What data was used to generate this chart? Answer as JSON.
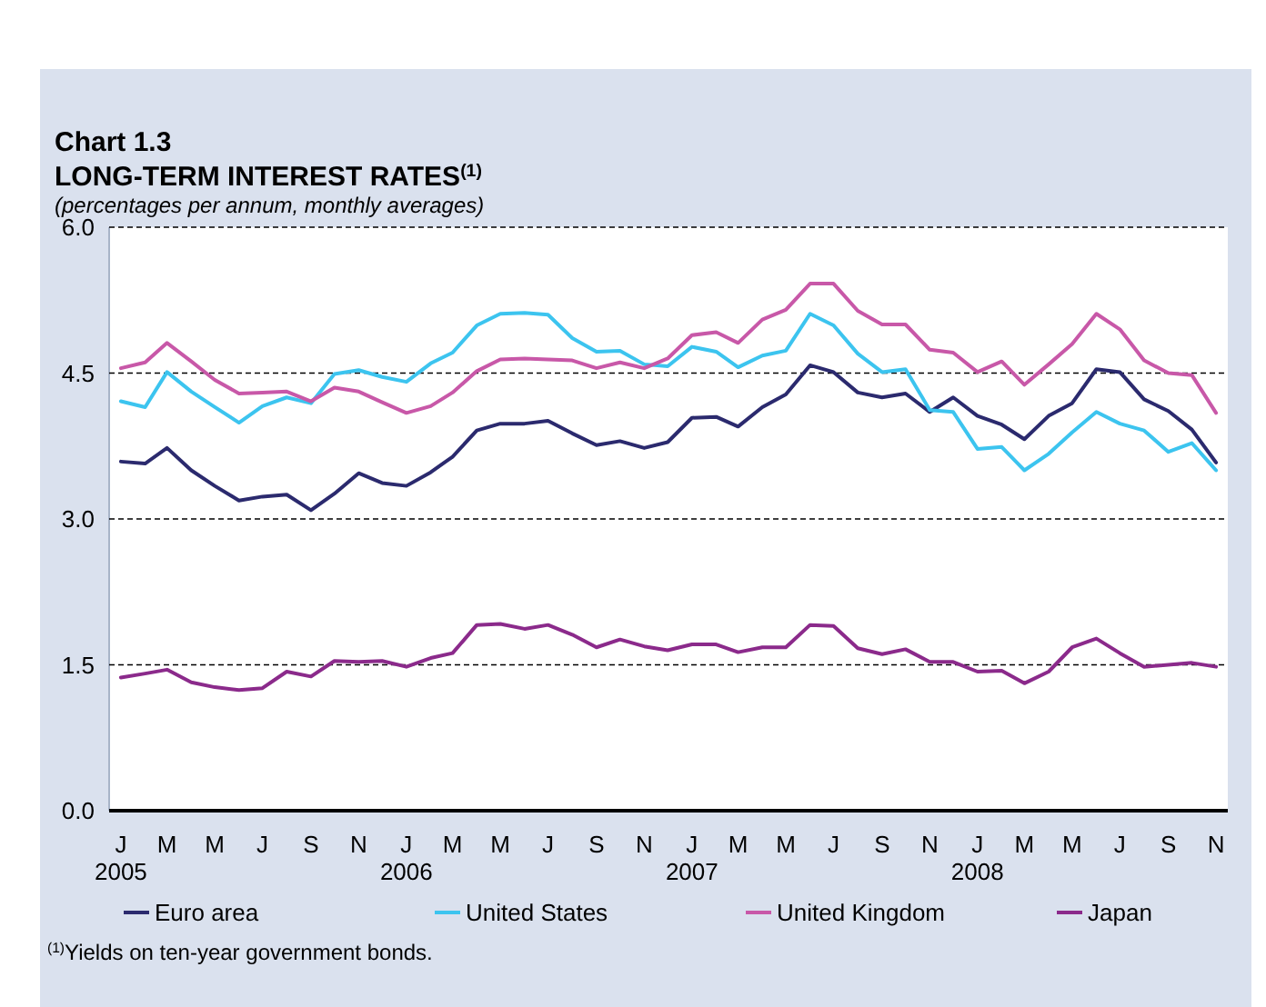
{
  "chart_data": {
    "type": "line",
    "title": "Chart 1.3",
    "subtitle": "LONG-TERM INTEREST RATES$^{(1)}$",
    "ylabel": "(percentages per annum, monthly averages)",
    "annotations": [
      "$^{(1)}$Yields on ten-year government bonds."
    ],
    "x": [
      "2005-01",
      "2005-02",
      "2005-03",
      "2005-04",
      "2005-05",
      "2005-06",
      "2005-07",
      "2005-08",
      "2005-09",
      "2005-10",
      "2005-11",
      "2005-12",
      "2006-01",
      "2006-02",
      "2006-03",
      "2006-04",
      "2006-05",
      "2006-06",
      "2006-07",
      "2006-08",
      "2006-09",
      "2006-10",
      "2006-11",
      "2006-12",
      "2007-01",
      "2007-02",
      "2007-03",
      "2007-04",
      "2007-05",
      "2007-06",
      "2007-07",
      "2007-08",
      "2007-09",
      "2007-10",
      "2007-11",
      "2007-12",
      "2008-01",
      "2008-02",
      "2008-03",
      "2008-04",
      "2008-05",
      "2008-06",
      "2008-07",
      "2008-08",
      "2008-09",
      "2008-10",
      "2008-11"
    ],
    "series": [
      {
        "name": "Euro area",
        "color": "#2b2a6e",
        "values": [
          3.59,
          3.57,
          3.73,
          3.5,
          3.34,
          3.19,
          3.23,
          3.25,
          3.09,
          3.26,
          3.47,
          3.37,
          3.34,
          3.48,
          3.64,
          3.91,
          3.98,
          3.98,
          4.01,
          3.88,
          3.76,
          3.8,
          3.73,
          3.79,
          4.04,
          4.05,
          3.95,
          4.15,
          4.28,
          4.58,
          4.51,
          4.3,
          4.25,
          4.29,
          4.1,
          4.25,
          4.06,
          3.97,
          3.82,
          4.06,
          4.19,
          4.54,
          4.51,
          4.23,
          4.11,
          3.92,
          3.58
        ]
      },
      {
        "name": "United States",
        "color": "#3cc4ef",
        "values": [
          4.21,
          4.15,
          4.51,
          4.31,
          4.15,
          3.99,
          4.16,
          4.25,
          4.19,
          4.49,
          4.53,
          4.46,
          4.41,
          4.6,
          4.71,
          4.99,
          5.11,
          5.12,
          5.1,
          4.86,
          4.72,
          4.73,
          4.59,
          4.57,
          4.77,
          4.72,
          4.56,
          4.68,
          4.73,
          5.11,
          4.99,
          4.7,
          4.51,
          4.54,
          4.12,
          4.1,
          3.72,
          3.74,
          3.5,
          3.67,
          3.89,
          4.1,
          3.98,
          3.91,
          3.69,
          3.78,
          3.5
        ]
      },
      {
        "name": "United Kingdom",
        "color": "#c858a8",
        "values": [
          4.55,
          4.61,
          4.81,
          4.62,
          4.43,
          4.29,
          4.3,
          4.31,
          4.21,
          4.35,
          4.31,
          4.2,
          4.09,
          4.16,
          4.3,
          4.52,
          4.64,
          4.65,
          4.64,
          4.63,
          4.55,
          4.61,
          4.55,
          4.65,
          4.89,
          4.92,
          4.81,
          5.05,
          5.15,
          5.42,
          5.42,
          5.14,
          5.0,
          5.0,
          4.74,
          4.71,
          4.51,
          4.62,
          4.38,
          4.59,
          4.8,
          5.11,
          4.95,
          4.63,
          4.5,
          4.48,
          4.09
        ]
      },
      {
        "name": "Japan",
        "color": "#8b2a8b",
        "values": [
          1.37,
          1.41,
          1.45,
          1.32,
          1.27,
          1.24,
          1.26,
          1.43,
          1.38,
          1.54,
          1.53,
          1.54,
          1.48,
          1.57,
          1.62,
          1.91,
          1.92,
          1.87,
          1.91,
          1.81,
          1.68,
          1.76,
          1.69,
          1.65,
          1.71,
          1.71,
          1.63,
          1.68,
          1.68,
          1.91,
          1.9,
          1.67,
          1.61,
          1.66,
          1.53,
          1.53,
          1.43,
          1.44,
          1.31,
          1.43,
          1.68,
          1.77,
          1.62,
          1.48,
          1.5,
          1.52,
          1.48
        ]
      }
    ],
    "xlim": [
      "2004-12-17",
      "2008-11-16"
    ],
    "xticks": [
      {
        "value": "2005-01",
        "label": "J\n2005"
      },
      {
        "value": "2005-03",
        "label": "M"
      },
      {
        "value": "2005-05",
        "label": "M"
      },
      {
        "value": "2005-07",
        "label": "J"
      },
      {
        "value": "2005-09",
        "label": "S"
      },
      {
        "value": "2005-11",
        "label": "N"
      },
      {
        "value": "2006-01",
        "label": "J\n2006"
      },
      {
        "value": "2006-03",
        "label": "M"
      },
      {
        "value": "2006-05",
        "label": "M"
      },
      {
        "value": "2006-07",
        "label": "J"
      },
      {
        "value": "2006-09",
        "label": "S"
      },
      {
        "value": "2006-11",
        "label": "N"
      },
      {
        "value": "2007-01",
        "label": "J\n2007"
      },
      {
        "value": "2007-03",
        "label": "M"
      },
      {
        "value": "2007-05",
        "label": "M"
      },
      {
        "value": "2007-07",
        "label": "J"
      },
      {
        "value": "2007-09",
        "label": "S"
      },
      {
        "value": "2007-11",
        "label": "N"
      },
      {
        "value": "2008-01",
        "label": "J\n2008"
      },
      {
        "value": "2008-03",
        "label": "M"
      },
      {
        "value": "2008-05",
        "label": "M"
      },
      {
        "value": "2008-07",
        "label": "J"
      },
      {
        "value": "2008-09",
        "label": "S"
      },
      {
        "value": "2008-11",
        "label": "N"
      }
    ],
    "ylim": [
      0,
      6
    ],
    "yticks": [
      {
        "value": 0,
        "label": "0.0"
      },
      {
        "value": 1.5,
        "label": "1.5"
      },
      {
        "value": 3,
        "label": "3.0"
      },
      {
        "value": 4.5,
        "label": "4.5"
      },
      {
        "value": 6,
        "label": "6.0"
      }
    ],
    "grid": "y",
    "legend": "bottom",
    "marker": "none",
    "line_style": "solid"
  }
}
